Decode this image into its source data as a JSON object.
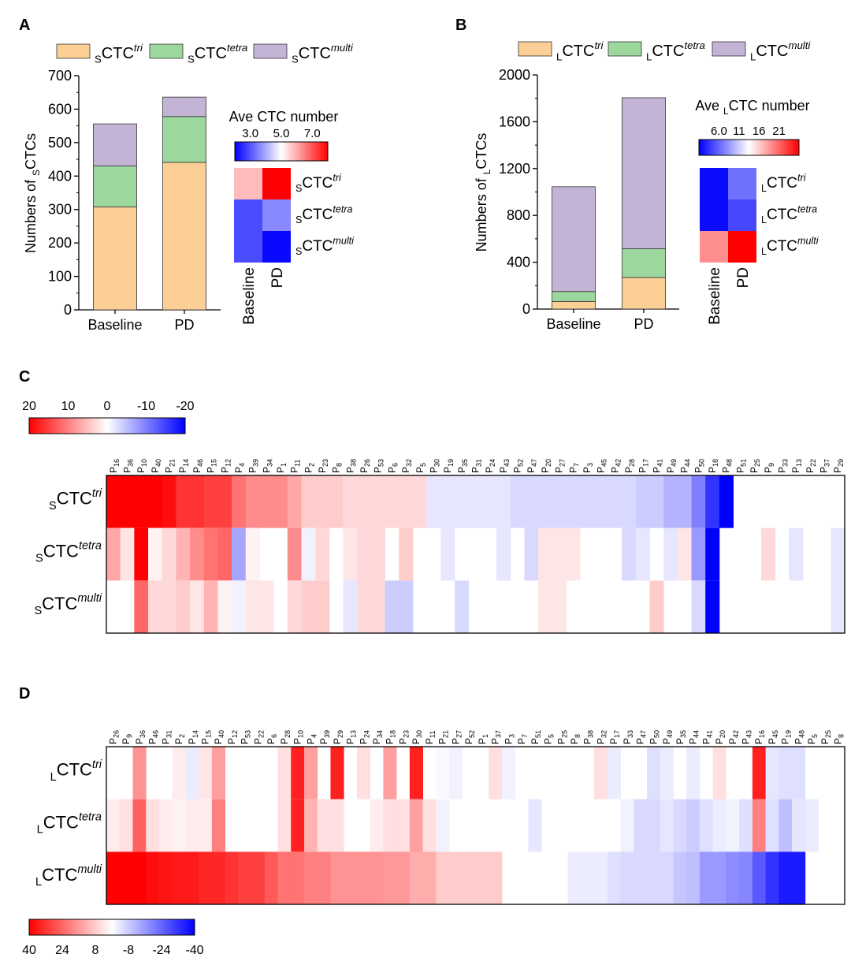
{
  "panels": {
    "A": {
      "letter": "A",
      "chart_data": {
        "type": "bar",
        "stacked": true,
        "categories": [
          "Baseline",
          "PD"
        ],
        "series": [
          {
            "name": "sCTC tri",
            "sub": "S",
            "base": "CTC",
            "sup": "tri",
            "color": "#FBCF95",
            "values": [
              308,
              441
            ]
          },
          {
            "name": "sCTC tetra",
            "sub": "S",
            "base": "CTC",
            "sup": "tetra",
            "color": "#9CD89E",
            "values": [
              122,
              137
            ]
          },
          {
            "name": "sCTC multi",
            "sub": "S",
            "base": "CTC",
            "sup": "multi",
            "color": "#C3B4D5",
            "values": [
              126,
              58
            ]
          }
        ],
        "ylabel": {
          "pre": "Numbers of ",
          "sub": "S",
          "post": "CTCs"
        },
        "ylim": [
          0,
          700
        ],
        "yticks": [
          0,
          100,
          200,
          300,
          400,
          500,
          600,
          700
        ]
      },
      "heatmap": {
        "title": {
          "pre": "Ave ",
          "sub": "",
          "post": "CTC number"
        },
        "scale_min": 2,
        "scale_max": 8,
        "ticks": [
          3.0,
          5.0,
          7.0
        ],
        "tick_labels": [
          "3.0",
          "5.0",
          "7.0"
        ],
        "columns": [
          "Baseline",
          "PD"
        ],
        "rows": [
          {
            "sub": "S",
            "base": "CTC",
            "sup": "tri",
            "values": [
              5.8,
              8.0
            ]
          },
          {
            "sub": "S",
            "base": "CTC",
            "sup": "tetra",
            "values": [
              2.9,
              3.6
            ]
          },
          {
            "sub": "S",
            "base": "CTC",
            "sup": "multi",
            "values": [
              2.9,
              2.1
            ]
          }
        ]
      }
    },
    "B": {
      "letter": "B",
      "chart_data": {
        "type": "bar",
        "stacked": true,
        "categories": [
          "Baseline",
          "PD"
        ],
        "series": [
          {
            "name": "LCTC tri",
            "sub": "L",
            "base": "CTC",
            "sup": "tri",
            "color": "#FBCF95",
            "values": [
              65,
              270
            ]
          },
          {
            "name": "LCTC tetra",
            "sub": "L",
            "base": "CTC",
            "sup": "tetra",
            "color": "#9CD89E",
            "values": [
              85,
              245
            ]
          },
          {
            "name": "LCTC multi",
            "sub": "L",
            "base": "CTC",
            "sup": "multi",
            "color": "#C3B4D5",
            "values": [
              895,
              1290
            ]
          }
        ],
        "ylabel": {
          "pre": "Numbers of ",
          "sub": "L",
          "post": "CTCs"
        },
        "ylim": [
          0,
          2000
        ],
        "yticks": [
          0,
          400,
          800,
          1200,
          1600,
          2000
        ]
      },
      "heatmap": {
        "title": {
          "pre": "Ave ",
          "sub": "L",
          "post": "CTC number"
        },
        "scale_min": 1,
        "scale_max": 26,
        "ticks": [
          6.0,
          11,
          16,
          21
        ],
        "tick_labels": [
          "6.0",
          "11",
          "16",
          "21"
        ],
        "columns": [
          "Baseline",
          "PD"
        ],
        "rows": [
          {
            "sub": "L",
            "base": "CTC",
            "sup": "tri",
            "values": [
              1.5,
              6.5
            ]
          },
          {
            "sub": "L",
            "base": "CTC",
            "sup": "tetra",
            "values": [
              1.5,
              4.5
            ]
          },
          {
            "sub": "L",
            "base": "CTC",
            "sup": "multi",
            "values": [
              19.0,
              26.0
            ]
          }
        ]
      }
    },
    "C": {
      "letter": "C",
      "chart_data": {
        "type": "heatmap",
        "colorbar_ticks": [
          20,
          10,
          0,
          -10,
          -20
        ],
        "scale_max": 20,
        "columns": [
          "16",
          "36",
          "10",
          "40",
          "21",
          "14",
          "46",
          "15",
          "12",
          "4",
          "39",
          "34",
          "1",
          "11",
          "2",
          "23",
          "8",
          "38",
          "26",
          "53",
          "6",
          "32",
          "5",
          "30",
          "19",
          "35",
          "31",
          "24",
          "43",
          "52",
          "47",
          "20",
          "27",
          "7",
          "3",
          "45",
          "42",
          "28",
          "17",
          "41",
          "49",
          "44",
          "50",
          "18",
          "48",
          "51",
          "25",
          "9",
          "33",
          "13",
          "22",
          "37",
          "29"
        ],
        "rows": [
          {
            "sub": "S",
            "base": "CTC",
            "sup": "tri",
            "values": [
              20,
              20,
              20,
              20,
              19,
              16,
              16,
              15,
              15,
              11,
              9,
              9,
              9,
              7,
              4,
              4,
              4,
              3,
              3,
              3,
              3,
              3,
              3,
              -2,
              -2,
              -2,
              -2,
              -2,
              -2,
              -3,
              -3,
              -3,
              -3,
              -3,
              -3,
              -3,
              -3,
              -3,
              -4,
              -4,
              -6,
              -6,
              -10,
              -16,
              -20,
              0,
              0,
              0,
              0,
              0,
              0,
              0,
              0
            ]
          },
          {
            "sub": "S",
            "base": "CTC",
            "sup": "tetra",
            "values": [
              7,
              2,
              20,
              1,
              3,
              6,
              9,
              11,
              12,
              -7,
              1,
              0,
              0,
              9,
              -1,
              3,
              0,
              2,
              3,
              3,
              0,
              4,
              0,
              0,
              -2,
              0,
              0,
              0,
              -2,
              0,
              -3,
              2,
              2,
              2,
              0,
              0,
              0,
              -3,
              -2,
              0,
              -2,
              2,
              -8,
              -20,
              0,
              0,
              0,
              3,
              0,
              -2,
              0,
              0,
              -2
            ]
          },
          {
            "sub": "S",
            "base": "CTC",
            "sup": "multi",
            "values": [
              0,
              0,
              12,
              3,
              3,
              4,
              2,
              6,
              1,
              -1,
              2,
              2,
              0,
              3,
              4,
              4,
              0,
              -2,
              3,
              3,
              -4,
              -4,
              0,
              0,
              0,
              -3,
              0,
              0,
              0,
              0,
              0,
              2,
              2,
              0,
              0,
              0,
              0,
              0,
              0,
              4,
              0,
              0,
              -3,
              -20,
              0,
              0,
              0,
              0,
              0,
              0,
              0,
              0,
              -2
            ]
          }
        ]
      }
    },
    "D": {
      "letter": "D",
      "chart_data": {
        "type": "heatmap",
        "colorbar_ticks": [
          40,
          24,
          8,
          -8,
          -24,
          -40
        ],
        "scale_max": 40,
        "columns": [
          "26",
          "9",
          "36",
          "46",
          "31",
          "2",
          "14",
          "15",
          "40",
          "12",
          "53",
          "22",
          "6",
          "28",
          "10",
          "4",
          "39",
          "29",
          "13",
          "24",
          "34",
          "18",
          "23",
          "30",
          "11",
          "21",
          "27",
          "52",
          "1",
          "37",
          "3",
          "7",
          "51",
          "5",
          "25",
          "8",
          "38",
          "32",
          "17",
          "33",
          "47",
          "50",
          "49",
          "35",
          "44",
          "41",
          "20",
          "42",
          "43",
          "16",
          "45",
          "19",
          "48",
          "5",
          "25",
          "8"
        ],
        "rows": [
          {
            "sub": "L",
            "base": "CTC",
            "sup": "tri",
            "values": [
              0,
              0,
              17,
              0,
              0,
              3,
              -3,
              4,
              15,
              0,
              0,
              0,
              0,
              5,
              35,
              15,
              0,
              35,
              0,
              5,
              0,
              15,
              0,
              35,
              0,
              -1,
              -2,
              0,
              0,
              5,
              -2,
              0,
              0,
              0,
              0,
              0,
              0,
              5,
              -3,
              0,
              0,
              -5,
              -3,
              0,
              -3,
              0,
              5,
              0,
              0,
              35,
              -4,
              -5,
              -5,
              0,
              0,
              0
            ]
          },
          {
            "sub": "L",
            "base": "CTC",
            "sup": "tetra",
            "values": [
              3,
              5,
              25,
              5,
              3,
              2,
              3,
              3,
              20,
              0,
              0,
              0,
              0,
              5,
              35,
              12,
              5,
              5,
              0,
              0,
              3,
              5,
              5,
              15,
              5,
              -2,
              0,
              0,
              0,
              0,
              0,
              0,
              -4,
              0,
              0,
              0,
              0,
              0,
              0,
              -2,
              -6,
              -6,
              -4,
              -6,
              -8,
              -5,
              -3,
              -2,
              -5,
              20,
              -5,
              -10,
              -4,
              -3,
              0,
              0
            ]
          },
          {
            "sub": "L",
            "base": "CTC",
            "sup": "multi",
            "values": [
              40,
              40,
              40,
              38,
              37,
              36,
              36,
              34,
              34,
              32,
              30,
              30,
              26,
              22,
              22,
              20,
              20,
              17,
              17,
              17,
              17,
              16,
              16,
              13,
              13,
              8,
              8,
              8,
              8,
              8,
              0,
              0,
              0,
              0,
              0,
              -3,
              -3,
              -3,
              -5,
              -6,
              -6,
              -6,
              -6,
              -9,
              -10,
              -16,
              -16,
              -18,
              -19,
              -26,
              -32,
              -36,
              -36,
              0,
              0,
              0
            ]
          }
        ]
      }
    }
  }
}
